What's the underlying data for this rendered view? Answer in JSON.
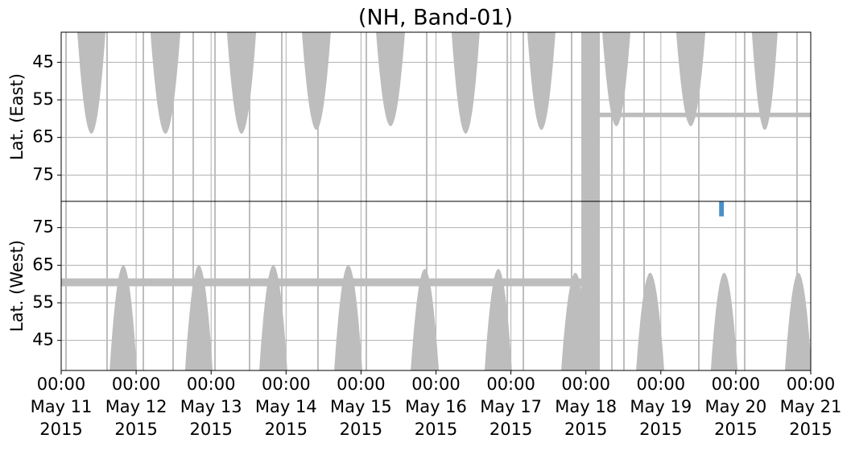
{
  "chart_data": {
    "type": "coverage",
    "title": "(NH, Band-01)",
    "xlim": [
      "2015-05-11T00:00",
      "2015-05-21T00:00"
    ],
    "xticks": [
      {
        "value": "2015-05-11T00:00",
        "label": "00:00\nMay 11\n2015"
      },
      {
        "value": "2015-05-12T00:00",
        "label": "00:00\nMay 12\n2015"
      },
      {
        "value": "2015-05-13T00:00",
        "label": "00:00\nMay 13\n2015"
      },
      {
        "value": "2015-05-14T00:00",
        "label": "00:00\nMay 14\n2015"
      },
      {
        "value": "2015-05-15T00:00",
        "label": "00:00\nMay 15\n2015"
      },
      {
        "value": "2015-05-16T00:00",
        "label": "00:00\nMay 16\n2015"
      },
      {
        "value": "2015-05-17T00:00",
        "label": "00:00\nMay 17\n2015"
      },
      {
        "value": "2015-05-18T00:00",
        "label": "00:00\nMay 18\n2015"
      },
      {
        "value": "2015-05-19T00:00",
        "label": "00:00\nMay 19\n2015"
      },
      {
        "value": "2015-05-20T00:00",
        "label": "00:00\nMay 20\n2015"
      },
      {
        "value": "2015-05-21T00:00",
        "label": "00:00\nMay 21\n2015"
      }
    ],
    "grid": true,
    "color": "#bdbdbd",
    "highlight_color": "#4a90c8",
    "block": {
      "x": [
        "2015-05-17T22:32",
        "2015-05-18T04:28"
      ]
    },
    "stripes": [
      "2015-05-11T01:33",
      "2015-05-11T14:41",
      "2015-05-12T02:18",
      "2015-05-12T11:50",
      "2015-05-12T18:17",
      "2015-05-13T01:15",
      "2015-05-13T12:19",
      "2015-05-13T22:38",
      "2015-05-14T10:13",
      "2015-05-15T01:42",
      "2015-05-15T21:02",
      "2015-05-16T22:50",
      "2015-05-17T03:58",
      "2015-05-17T19:26",
      "2015-05-18T08:19",
      "2015-05-18T12:11",
      "2015-05-18T18:38",
      "2015-05-19T12:10",
      "2015-05-20T02:51",
      "2015-05-20T19:36"
    ],
    "panels": [
      {
        "ylabel": "Lat. (East)",
        "ylim": [
          37,
          82
        ],
        "inverted": true,
        "yticks": [
          45,
          55,
          65,
          75
        ],
        "arcs": [
          {
            "x": [
              "2015-05-11T05:10",
              "2015-05-11T14:10"
            ],
            "depth": 64
          },
          {
            "x": [
              "2015-05-12T04:35",
              "2015-05-12T14:10"
            ],
            "depth": 64
          },
          {
            "x": [
              "2015-05-13T05:05",
              "2015-05-13T14:25"
            ],
            "depth": 64
          },
          {
            "x": [
              "2015-05-14T05:05",
              "2015-05-14T14:20"
            ],
            "depth": 63
          },
          {
            "x": [
              "2015-05-15T04:50",
              "2015-05-15T14:05"
            ],
            "depth": 62
          },
          {
            "x": [
              "2015-05-16T05:00",
              "2015-05-16T14:00"
            ],
            "depth": 64
          },
          {
            "x": [
              "2015-05-17T05:15",
              "2015-05-17T14:15"
            ],
            "depth": 63
          },
          {
            "x": [
              "2015-05-18T05:15",
              "2015-05-18T14:15"
            ],
            "depth": 62
          },
          {
            "x": [
              "2015-05-19T04:55",
              "2015-05-19T14:15"
            ],
            "depth": 62
          },
          {
            "x": [
              "2015-05-20T05:10",
              "2015-05-20T13:25"
            ],
            "depth": 63
          }
        ],
        "band": {
          "x": [
            "2015-05-18T04:28",
            "2015-05-21T00:00"
          ],
          "lat": [
            58.4,
            59.6
          ]
        }
      },
      {
        "ylabel": "Lat. (West)",
        "ylim": [
          37,
          82
        ],
        "inverted": false,
        "yticks": [
          45,
          55,
          65,
          75
        ],
        "arcs": [
          {
            "x": [
              "2015-05-11T15:30",
              "2015-05-12T00:15"
            ],
            "depth": 65
          },
          {
            "x": [
              "2015-05-12T15:40",
              "2015-05-13T00:30"
            ],
            "depth": 65
          },
          {
            "x": [
              "2015-05-13T15:25",
              "2015-05-14T00:25"
            ],
            "depth": 65
          },
          {
            "x": [
              "2015-05-14T15:25",
              "2015-05-15T00:25"
            ],
            "depth": 65
          },
          {
            "x": [
              "2015-05-15T15:55",
              "2015-05-16T00:55"
            ],
            "depth": 64
          },
          {
            "x": [
              "2015-05-16T15:35",
              "2015-05-17T00:20"
            ],
            "depth": 64
          },
          {
            "x": [
              "2015-05-17T16:05",
              "2015-05-18T01:10"
            ],
            "depth": 63
          },
          {
            "x": [
              "2015-05-18T16:05",
              "2015-05-19T01:05"
            ],
            "depth": 63
          },
          {
            "x": [
              "2015-05-19T16:00",
              "2015-05-20T00:35"
            ],
            "depth": 63
          },
          {
            "x": [
              "2015-05-20T15:45",
              "2015-05-21T00:20"
            ],
            "depth": 63
          }
        ],
        "band": {
          "x": [
            "2015-05-11T00:00",
            "2015-05-17T22:32"
          ],
          "lat": [
            59.4,
            61.5
          ]
        },
        "highlight": {
          "x": [
            "2015-05-19T18:40",
            "2015-05-19T20:10"
          ],
          "lat": [
            78,
            82
          ]
        }
      }
    ]
  }
}
